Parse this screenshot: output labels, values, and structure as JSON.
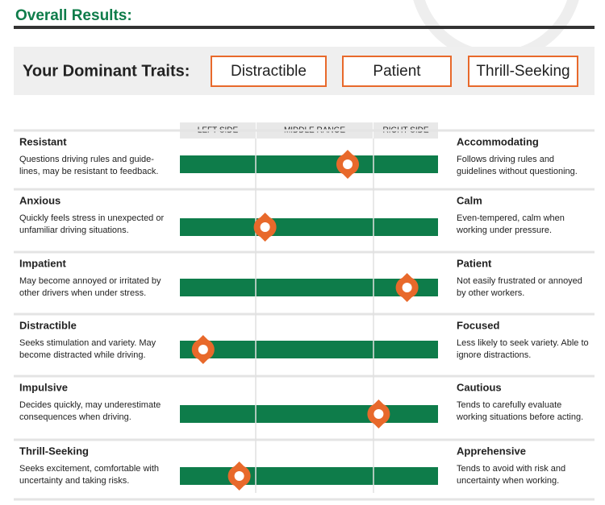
{
  "header": {
    "title": "Overall Results:"
  },
  "dominant": {
    "label": "Your Dominant Traits:",
    "traits": [
      "Distractible",
      "Patient",
      "Thrill-Seeking"
    ]
  },
  "scale": {
    "labels": [
      "LEFT SIDE",
      "MIDDLE RANGE",
      "RIGHT SIDE"
    ]
  },
  "rows": [
    {
      "left": {
        "title": "Resistant",
        "lines": [
          "Questions driving rules and guide-",
          "lines, may be resistant to feedback."
        ]
      },
      "right": {
        "title": "Accommodating",
        "lines": [
          "Follows driving rules and",
          "guidelines without questioning."
        ]
      },
      "position": 0.65
    },
    {
      "left": {
        "title": "Anxious",
        "lines": [
          "Quickly feels stress in unexpected or",
          "unfamiliar driving situations."
        ]
      },
      "right": {
        "title": "Calm",
        "lines": [
          "Even-tempered, calm when",
          "working under pressure."
        ]
      },
      "position": 0.33
    },
    {
      "left": {
        "title": "Impatient",
        "lines": [
          "May become annoyed or irritated by",
          "other drivers when under stress."
        ]
      },
      "right": {
        "title": "Patient",
        "lines": [
          "Not easily frustrated or annoyed",
          "by other workers."
        ]
      },
      "position": 0.88
    },
    {
      "left": {
        "title": "Distractible",
        "lines": [
          "Seeks stimulation and variety. May",
          "become distracted while driving."
        ]
      },
      "right": {
        "title": "Focused",
        "lines": [
          "Less likely to seek variety. Able to",
          "ignore distractions."
        ]
      },
      "position": 0.09
    },
    {
      "left": {
        "title": "Impulsive",
        "lines": [
          "Decides quickly, may underestimate",
          "consequences when driving."
        ]
      },
      "right": {
        "title": "Cautious",
        "lines": [
          "Tends to carefully evaluate",
          "working situations before acting."
        ]
      },
      "position": 0.77
    },
    {
      "left": {
        "title": "Thrill-Seeking",
        "lines": [
          "Seeks excitement, comfortable with",
          "uncertainty and taking risks."
        ]
      },
      "right": {
        "title": "Apprehensive",
        "lines": [
          "Tends to avoid with risk and",
          "uncertainty when working."
        ]
      },
      "position": 0.23
    }
  ]
}
